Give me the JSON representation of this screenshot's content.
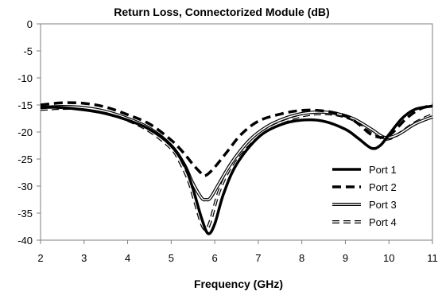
{
  "chart_data": {
    "type": "line",
    "title": "Return Loss, Connectorized Module (dB)",
    "xlabel": "Frequency (GHz)",
    "ylabel": "",
    "xlim": [
      2,
      11
    ],
    "ylim": [
      -40,
      0
    ],
    "xticks": [
      2,
      3,
      4,
      5,
      6,
      7,
      8,
      9,
      10,
      11
    ],
    "yticks": [
      0,
      -5,
      -10,
      -15,
      -20,
      -25,
      -30,
      -35,
      -40
    ],
    "grid": false,
    "legend_position": "lower-right",
    "series": [
      {
        "name": "Port 1",
        "style": "solid-thick",
        "color": "#000000",
        "x": [
          2,
          2.5,
          3,
          3.5,
          4,
          4.5,
          5,
          5.3,
          5.5,
          5.7,
          5.85,
          6.0,
          6.2,
          6.5,
          7.0,
          7.5,
          8.0,
          8.5,
          9.0,
          9.3,
          9.6,
          9.8,
          10.0,
          10.3,
          10.6,
          11
        ],
        "y": [
          -15.4,
          -15.5,
          -15.9,
          -16.6,
          -17.8,
          -19.5,
          -22.5,
          -26.0,
          -30.5,
          -36.0,
          -38.8,
          -37.0,
          -31.5,
          -26.0,
          -21.0,
          -18.7,
          -17.8,
          -18.0,
          -19.5,
          -21.2,
          -23.0,
          -22.5,
          -20.5,
          -17.5,
          -15.8,
          -15.2
        ]
      },
      {
        "name": "Port 2",
        "style": "dashed-thick",
        "color": "#000000",
        "x": [
          2,
          2.5,
          3,
          3.5,
          4,
          4.5,
          5,
          5.3,
          5.5,
          5.7,
          5.8,
          6.0,
          6.3,
          6.6,
          7.0,
          7.5,
          8.0,
          8.5,
          9.0,
          9.3,
          9.6,
          9.9,
          10.1,
          10.4,
          10.7,
          11
        ],
        "y": [
          -15.0,
          -14.6,
          -14.7,
          -15.4,
          -16.8,
          -18.5,
          -21.5,
          -24.0,
          -26.0,
          -27.7,
          -28.0,
          -26.5,
          -23.5,
          -20.5,
          -18.0,
          -16.7,
          -16.0,
          -16.1,
          -17.0,
          -18.5,
          -20.5,
          -21.0,
          -20.0,
          -17.5,
          -15.8,
          -15.0
        ]
      },
      {
        "name": "Port 3",
        "style": "double-line",
        "color": "#000000",
        "x": [
          2,
          2.5,
          3,
          3.5,
          4,
          4.5,
          5,
          5.3,
          5.5,
          5.7,
          5.8,
          5.9,
          6.1,
          6.4,
          6.8,
          7.2,
          7.6,
          8.0,
          8.4,
          8.8,
          9.2,
          9.6,
          9.9,
          10.2,
          10.6,
          11
        ],
        "y": [
          -15.5,
          -15.3,
          -15.5,
          -16.2,
          -17.5,
          -19.3,
          -22.5,
          -26.0,
          -29.5,
          -32.2,
          -32.5,
          -32.2,
          -29.5,
          -25.5,
          -21.5,
          -19.0,
          -17.5,
          -16.6,
          -16.3,
          -16.6,
          -17.6,
          -19.5,
          -21.0,
          -20.5,
          -18.5,
          -17.2
        ]
      },
      {
        "name": "Port 4",
        "style": "dashed-double",
        "color": "#000000",
        "x": [
          2,
          2.5,
          3,
          3.5,
          4,
          4.5,
          5,
          5.2,
          5.4,
          5.55,
          5.7,
          5.8,
          5.9,
          6.1,
          6.4,
          6.8,
          7.2,
          7.6,
          8.0,
          8.4,
          8.8,
          9.2,
          9.6,
          9.9,
          10.2,
          10.6,
          11
        ],
        "y": [
          -15.8,
          -15.6,
          -15.7,
          -16.4,
          -17.8,
          -19.8,
          -23.0,
          -25.5,
          -29.0,
          -33.0,
          -37.0,
          -38.0,
          -36.5,
          -31.0,
          -26.0,
          -22.0,
          -19.5,
          -18.0,
          -17.0,
          -16.6,
          -16.8,
          -17.8,
          -19.8,
          -21.3,
          -20.5,
          -18.3,
          -16.8
        ]
      }
    ]
  }
}
